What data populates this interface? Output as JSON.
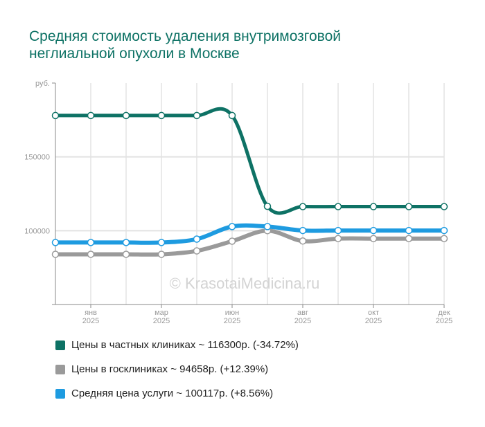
{
  "title_line1": "Средняя стоимость удаления внутримозговой",
  "title_line2": "неглиальной опухоли в Москве",
  "watermark": "© KrasotaiMedicina.ru",
  "chart_data": {
    "type": "line",
    "ylabel": "руб.",
    "ylim": [
      50000,
      200000
    ],
    "yticks": [
      {
        "v": 150000,
        "label": "150000"
      },
      {
        "v": 100000,
        "label": "100000"
      }
    ],
    "x_count": 12,
    "xticks": [
      {
        "i": 1,
        "m": "янв",
        "y": "2025"
      },
      {
        "i": 3,
        "m": "мар",
        "y": "2025"
      },
      {
        "i": 5,
        "m": "июн",
        "y": "2025"
      },
      {
        "i": 7,
        "m": "авг",
        "y": "2025"
      },
      {
        "i": 9,
        "m": "окт",
        "y": "2025"
      },
      {
        "i": 11,
        "m": "дек",
        "y": "2025"
      }
    ],
    "series": [
      {
        "name": "Цены в частных клиниках ~ 116300р. (-34.72%)",
        "color": "#0e7265",
        "values": [
          178000,
          178000,
          178000,
          178000,
          178000,
          178000,
          116500,
          116300,
          116300,
          116300,
          116300,
          116300
        ]
      },
      {
        "name": "Цены в госклиниках ~ 94658р. (+12.39%)",
        "color": "#9a9a9a",
        "values": [
          84000,
          84000,
          84000,
          84000,
          86300,
          92900,
          100000,
          93000,
          94658,
          94658,
          94658,
          94658
        ]
      },
      {
        "name": "Средняя цена услуги ~ 100117р. (+8.56%)",
        "color": "#1e9be0",
        "values": [
          92000,
          92000,
          92000,
          92000,
          94300,
          102800,
          102800,
          100117,
          100117,
          100117,
          100117,
          100117
        ]
      }
    ]
  }
}
